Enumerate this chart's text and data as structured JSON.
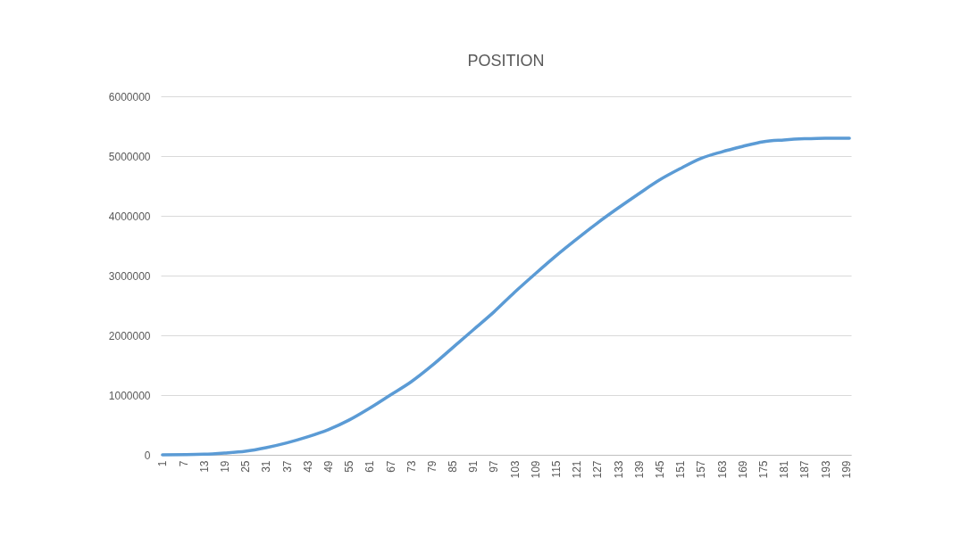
{
  "chart_data": {
    "type": "line",
    "title": "POSITION",
    "x": [
      1,
      13,
      19,
      25,
      31,
      37,
      43,
      49,
      55,
      61,
      67,
      73,
      79,
      85,
      91,
      97,
      103,
      109,
      115,
      121,
      127,
      133,
      139,
      145,
      151,
      157,
      163,
      169,
      175,
      181,
      187,
      193,
      200
    ],
    "series": [
      {
        "color": "#5b9bd5",
        "values": [
          0,
          10000,
          30000,
          60000,
          120000,
          200000,
          300000,
          420000,
          580000,
          780000,
          1000000,
          1220000,
          1490000,
          1790000,
          2090000,
          2390000,
          2720000,
          3030000,
          3330000,
          3610000,
          3880000,
          4130000,
          4370000,
          4600000,
          4790000,
          4960000,
          5070000,
          5160000,
          5240000,
          5270000,
          5290000,
          5300000,
          5300000
        ]
      }
    ],
    "xlim": [
      0.5,
      200.5
    ],
    "xticks": [
      1,
      7,
      13,
      19,
      25,
      31,
      37,
      43,
      49,
      55,
      61,
      67,
      73,
      79,
      85,
      91,
      97,
      103,
      109,
      115,
      121,
      127,
      133,
      139,
      145,
      151,
      157,
      163,
      169,
      175,
      181,
      187,
      193,
      199
    ],
    "ylim": [
      0,
      6000000
    ],
    "yticks": [
      0,
      1000000,
      2000000,
      3000000,
      4000000,
      5000000,
      6000000
    ],
    "grid": "y"
  }
}
